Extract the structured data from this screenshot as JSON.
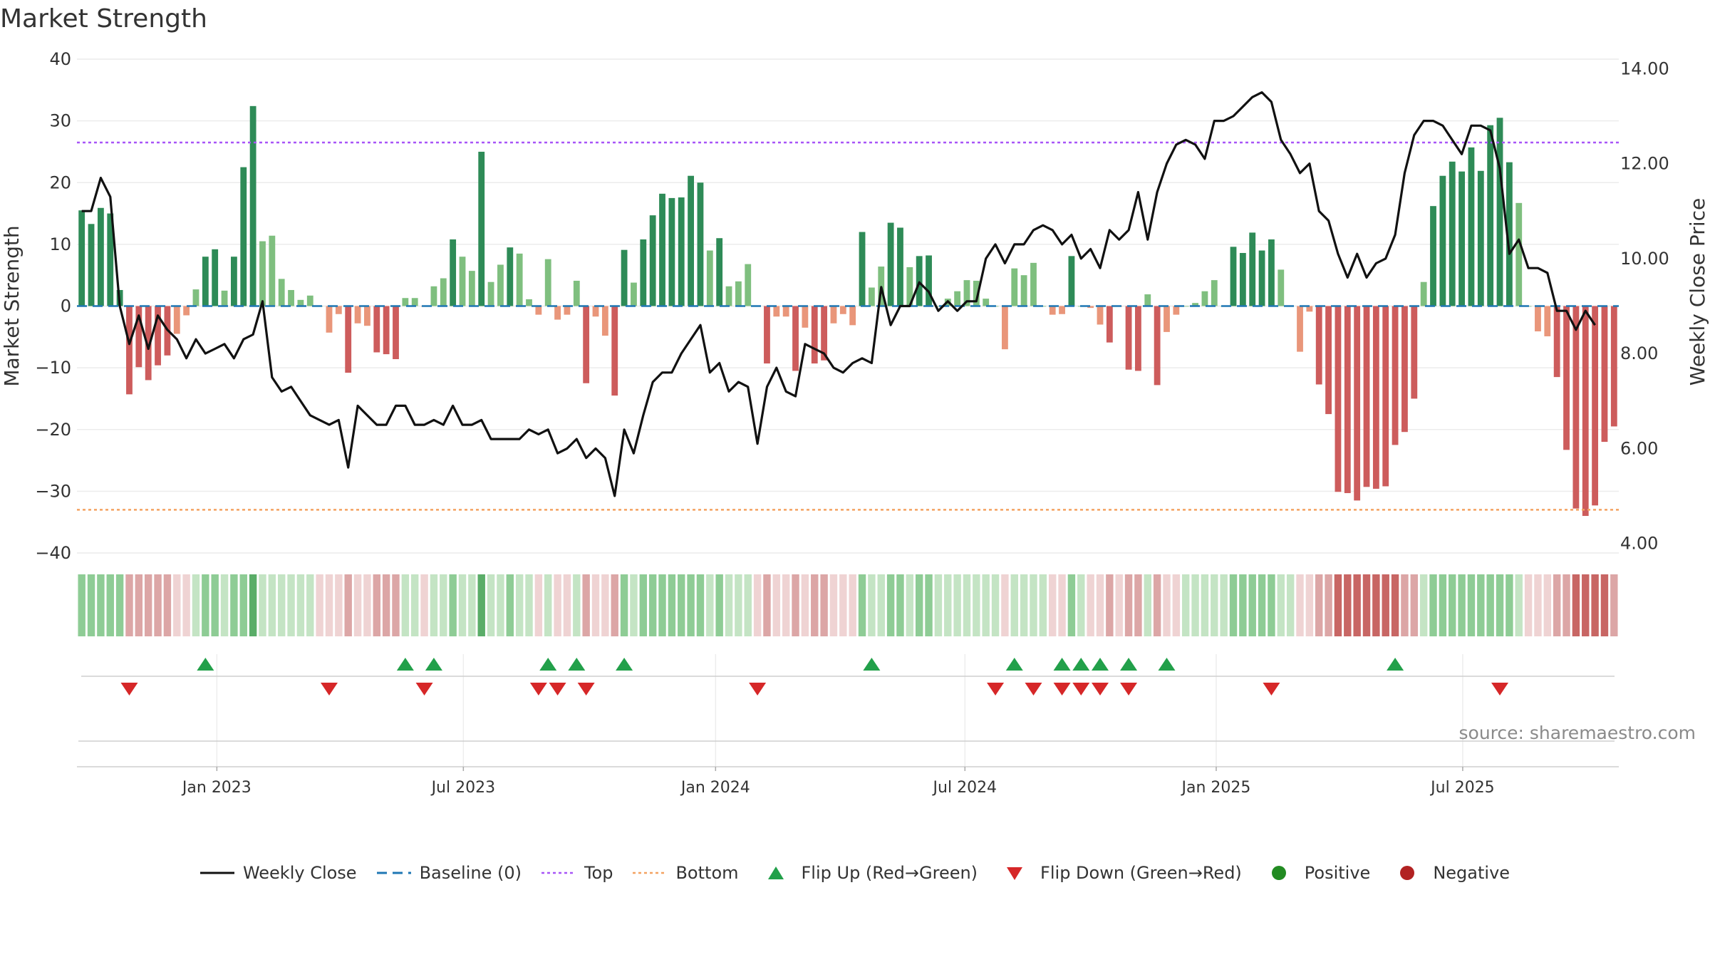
{
  "title": "Market Strength",
  "source": "source: sharemaestro.com",
  "colors": {
    "strong_green": "#2e8b57",
    "light_green": "#7fbf7f",
    "strong_red": "#cd5c5c",
    "light_red": "#e9967a",
    "line": "#111111",
    "baseline": "#1f77b4",
    "top": "#a855f7",
    "bottom": "#f4a261",
    "flip_up": "#22a04a",
    "flip_down": "#d62728",
    "positive": "#228b22",
    "negative": "#b22222"
  },
  "legend": [
    {
      "key": "weekly_close",
      "label": "Weekly Close",
      "symbol": "line"
    },
    {
      "key": "baseline",
      "label": "Baseline (0)",
      "symbol": "dash"
    },
    {
      "key": "top",
      "label": "Top",
      "symbol": "dot"
    },
    {
      "key": "bottom",
      "label": "Bottom",
      "symbol": "dotted-orange"
    },
    {
      "key": "flip_up",
      "label": "Flip Up (Red→Green)",
      "symbol": "triangle-up"
    },
    {
      "key": "flip_down",
      "label": "Flip Down (Green→Red)",
      "symbol": "triangle-down"
    },
    {
      "key": "positive",
      "label": "Positive",
      "symbol": "circle-green"
    },
    {
      "key": "negative",
      "label": "Negative",
      "symbol": "circle-red"
    }
  ],
  "chart_data": {
    "type": "bar",
    "title": "Market Strength",
    "ylabel": "Market Strength",
    "y2label": "Weekly Close Price",
    "ylim": [
      -40,
      40
    ],
    "y2lim": [
      3.8,
      14.2
    ],
    "yticks": [
      40,
      30,
      20,
      10,
      0,
      -10,
      -20,
      -30,
      -40
    ],
    "ytick_labels": [
      "40",
      "30",
      "20",
      "10",
      "0",
      "−10",
      "−20",
      "−30",
      "−40"
    ],
    "y2ticks": [
      14,
      12,
      10,
      8,
      6,
      4
    ],
    "y2tick_labels": [
      "14.00",
      "12.00",
      "10.00",
      "8.00",
      "6.00",
      "4.00"
    ],
    "xticks": [
      {
        "label": "Jan 2023",
        "week": 14.2
      },
      {
        "label": "Jul 2023",
        "week": 40.1
      },
      {
        "label": "Jan 2024",
        "week": 66.6
      },
      {
        "label": "Jul 2024",
        "week": 92.8
      },
      {
        "label": "Jan 2025",
        "week": 119.2
      },
      {
        "label": "Jul 2025",
        "week": 145.1
      }
    ],
    "top_line": 26.5,
    "bottom_line": -33,
    "grid": true,
    "legend_position": "bottom",
    "strength": [
      15.5,
      13.3,
      15.9,
      15,
      2.6,
      -14.3,
      -9.9,
      -12,
      -9.6,
      -8,
      -4.5,
      -1.5,
      2.7,
      8,
      9.2,
      2.5,
      8,
      22.5,
      32.4,
      10.5,
      11.4,
      4.4,
      2.6,
      1,
      1.7,
      0,
      -4.3,
      -1.3,
      -10.8,
      -2.8,
      -3.2,
      -7.5,
      -7.8,
      -8.6,
      1.3,
      1.3,
      -0.1,
      3.2,
      4.5,
      10.8,
      8,
      5.7,
      25,
      3.9,
      6.7,
      9.5,
      8.5,
      1.1,
      -1.4,
      7.6,
      -2.2,
      -1.4,
      4.1,
      -12.5,
      -1.7,
      -4.8,
      -14.5,
      9.1,
      3.8,
      10.8,
      14.7,
      18.2,
      17.5,
      17.6,
      21.1,
      20,
      9,
      11,
      3.2,
      4,
      6.8,
      0,
      -9.3,
      -1.7,
      -1.7,
      -10.5,
      -3.5,
      -9.3,
      -8.8,
      -2.8,
      -1.3,
      -3.1,
      12,
      3,
      6.4,
      13.5,
      12.7,
      6.3,
      8.1,
      8.2,
      0,
      1.2,
      2.4,
      4.2,
      4.1,
      1.2,
      0,
      -7,
      6.1,
      5,
      7,
      0,
      -1.4,
      -1.3,
      8.1,
      0,
      -0.3,
      -3,
      -5.9,
      -0.1,
      -10.3,
      -10.5,
      1.9,
      -12.8,
      -4.2,
      -1.4,
      0,
      0.5,
      2.4,
      4.2,
      0,
      9.6,
      8.6,
      11.9,
      9,
      10.8,
      5.9,
      0,
      -7.4,
      -0.9,
      -12.7,
      -17.5,
      -30.1,
      -30.3,
      -31.5,
      -29.3,
      -29.6,
      -29.2,
      -22.5,
      -20.4,
      -15,
      3.9,
      16.2,
      21.1,
      23.4,
      21.8,
      25.7,
      21.9,
      29.3,
      30.5,
      23.3,
      16.7,
      0,
      -4.1,
      -4.9,
      -11.5,
      -23.3,
      -32.8,
      -34,
      -32.3,
      -22,
      -19.5
    ],
    "close": [
      11,
      11,
      11.7,
      11.3,
      9,
      8.2,
      8.8,
      8.1,
      8.8,
      8.5,
      8.3,
      7.9,
      8.3,
      8,
      8.1,
      8.2,
      7.9,
      8.3,
      8.4,
      9.1,
      7.5,
      7.2,
      7.3,
      7,
      6.7,
      6.6,
      6.5,
      6.6,
      5.6,
      6.9,
      6.7,
      6.5,
      6.5,
      6.9,
      6.9,
      6.5,
      6.5,
      6.6,
      6.5,
      6.9,
      6.5,
      6.5,
      6.6,
      6.2,
      6.2,
      6.2,
      6.2,
      6.4,
      6.3,
      6.4,
      5.9,
      6,
      6.2,
      5.8,
      6,
      5.8,
      5,
      6.4,
      5.9,
      6.7,
      7.4,
      7.6,
      7.6,
      8,
      8.3,
      8.6,
      7.6,
      7.8,
      7.2,
      7.4,
      7.3,
      6.1,
      7.3,
      7.7,
      7.2,
      7.1,
      8.2,
      8.1,
      8,
      7.7,
      7.6,
      7.8,
      7.9,
      7.8,
      9.4,
      8.6,
      9,
      9,
      9.5,
      9.3,
      8.9,
      9.1,
      8.9,
      9.1,
      9.1,
      10,
      10.3,
      9.9,
      10.3,
      10.3,
      10.6,
      10.7,
      10.6,
      10.3,
      10.5,
      10,
      10.2,
      9.8,
      10.6,
      10.4,
      10.6,
      11.4,
      10.4,
      11.4,
      12,
      12.4,
      12.5,
      12.4,
      12.1,
      12.9,
      12.9,
      13,
      13.2,
      13.4,
      13.5,
      13.3,
      12.5,
      12.2,
      11.8,
      12,
      11,
      10.8,
      10.1,
      9.6,
      10.1,
      9.6,
      9.9,
      10,
      10.5,
      11.8,
      12.6,
      12.9,
      12.9,
      12.8,
      12.5,
      12.2,
      12.8,
      12.8,
      12.7,
      11.9,
      10.1,
      10.4,
      9.8,
      9.8,
      9.7,
      8.9,
      8.9,
      8.5,
      8.9,
      8.6
    ],
    "regime": [
      2,
      2,
      2,
      2,
      2,
      -2,
      -2,
      -2,
      -2,
      -2,
      -1,
      -1,
      1,
      2,
      2,
      1,
      2,
      2,
      3,
      1,
      1,
      1,
      1,
      1,
      1,
      -1,
      -1,
      -1,
      -2,
      -1,
      -1,
      -2,
      -2,
      -2,
      1,
      1,
      -1,
      1,
      1,
      2,
      1,
      1,
      3,
      1,
      1,
      2,
      1,
      1,
      -1,
      1,
      -1,
      -1,
      1,
      -2,
      -1,
      -1,
      -2,
      2,
      1,
      2,
      2,
      2,
      2,
      2,
      2,
      2,
      1,
      2,
      1,
      1,
      1,
      -1,
      -2,
      -1,
      -1,
      -2,
      -1,
      -2,
      -2,
      -1,
      -1,
      -1,
      2,
      1,
      1,
      2,
      2,
      1,
      2,
      2,
      1,
      1,
      1,
      1,
      1,
      1,
      1,
      -1,
      1,
      1,
      1,
      1,
      -1,
      -1,
      2,
      1,
      -1,
      -1,
      -2,
      -1,
      -2,
      -2,
      1,
      -2,
      -1,
      -1,
      1,
      1,
      1,
      1,
      1,
      2,
      2,
      2,
      2,
      2,
      1,
      1,
      -1,
      -1,
      -2,
      -2,
      -3,
      -3,
      -3,
      -3,
      -3,
      -3,
      -3,
      -2,
      -2,
      1,
      2,
      2,
      2,
      2,
      2,
      2,
      2,
      2,
      2,
      1,
      -1,
      -1,
      -1,
      -2,
      -2,
      -3,
      -3,
      -3,
      -3,
      -2
    ],
    "flip_up_weeks": [
      13,
      34,
      37,
      49,
      52,
      57,
      83,
      98,
      103,
      105,
      107,
      110,
      114,
      138
    ],
    "flip_down_weeks": [
      5,
      26,
      36,
      48,
      50,
      53,
      71,
      96,
      100,
      103,
      105,
      107,
      110,
      125,
      149
    ]
  }
}
